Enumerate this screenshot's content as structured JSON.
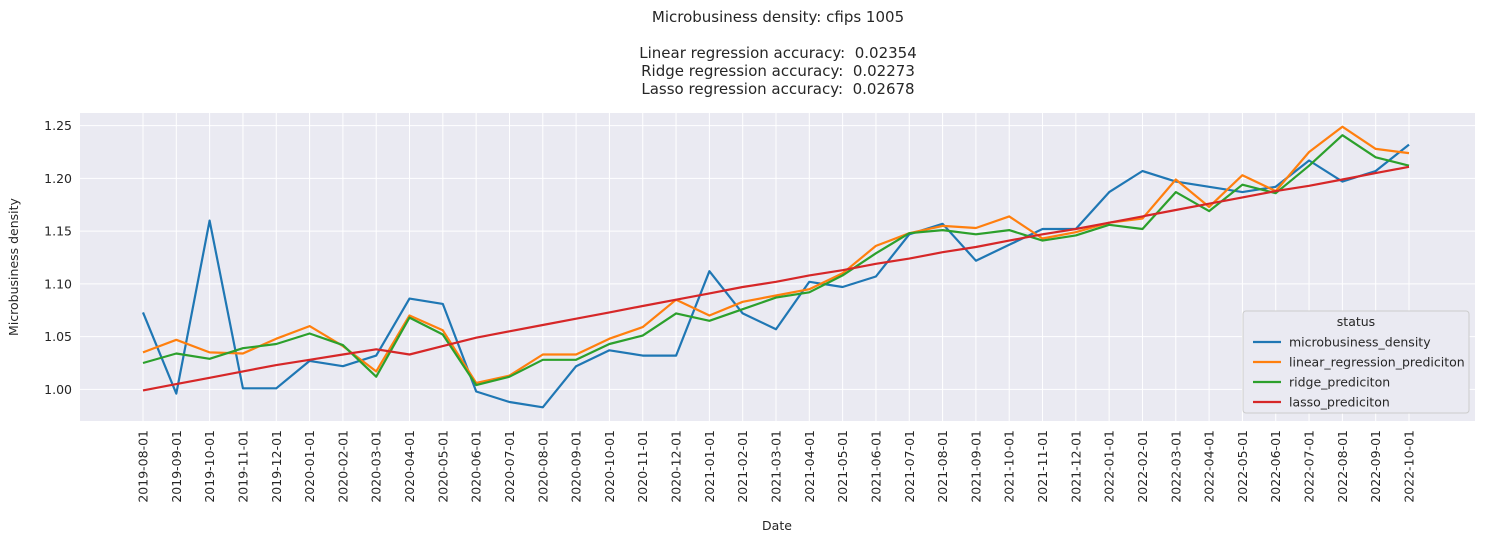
{
  "chart_data": {
    "type": "line",
    "title": "Microbusiness density: cfips 1005",
    "subtitle_lines": [
      "Linear regression accuracy:  0.02354",
      "Ridge regression accuracy:  0.02273",
      "Lasso regression accuracy:  0.02678"
    ],
    "xlabel": "Date",
    "ylabel": "Microbusiness density",
    "ylim": [
      0.97,
      1.262
    ],
    "yticks": [
      "1.00",
      "1.05",
      "1.10",
      "1.15",
      "1.20",
      "1.25"
    ],
    "ytick_values": [
      1.0,
      1.05,
      1.1,
      1.15,
      1.2,
      1.25
    ],
    "grid": true,
    "legend": {
      "title": "status",
      "placement": "lower-right"
    },
    "x": [
      "2019-08-01",
      "2019-09-01",
      "2019-10-01",
      "2019-11-01",
      "2019-12-01",
      "2020-01-01",
      "2020-02-01",
      "2020-03-01",
      "2020-04-01",
      "2020-05-01",
      "2020-06-01",
      "2020-07-01",
      "2020-08-01",
      "2020-09-01",
      "2020-10-01",
      "2020-11-01",
      "2020-12-01",
      "2021-01-01",
      "2021-02-01",
      "2021-03-01",
      "2021-04-01",
      "2021-05-01",
      "2021-06-01",
      "2021-07-01",
      "2021-08-01",
      "2021-09-01",
      "2021-10-01",
      "2021-11-01",
      "2021-12-01",
      "2022-01-01",
      "2022-02-01",
      "2022-03-01",
      "2022-04-01",
      "2022-05-01",
      "2022-06-01",
      "2022-07-01",
      "2022-08-01",
      "2022-09-01",
      "2022-10-01"
    ],
    "series": [
      {
        "name": "microbusiness_density",
        "color": "#1f77b4",
        "values": [
          1.073,
          0.996,
          1.16,
          1.001,
          1.001,
          1.027,
          1.022,
          1.032,
          1.086,
          1.081,
          0.998,
          0.988,
          0.983,
          1.022,
          1.037,
          1.032,
          1.032,
          1.112,
          1.072,
          1.057,
          1.102,
          1.097,
          1.107,
          1.147,
          1.157,
          1.122,
          1.137,
          1.152,
          1.152,
          1.187,
          1.207,
          1.197,
          1.192,
          1.187,
          1.192,
          1.217,
          1.197,
          1.207,
          1.232
        ]
      },
      {
        "name": "linear_regression_prediciton",
        "color": "#ff7f0e",
        "values": [
          1.035,
          1.047,
          1.035,
          1.034,
          1.048,
          1.06,
          1.041,
          1.017,
          1.07,
          1.056,
          1.006,
          1.013,
          1.033,
          1.033,
          1.048,
          1.059,
          1.085,
          1.07,
          1.083,
          1.089,
          1.095,
          1.11,
          1.136,
          1.148,
          1.155,
          1.153,
          1.164,
          1.143,
          1.149,
          1.158,
          1.162,
          1.199,
          1.173,
          1.203,
          1.188,
          1.225,
          1.249,
          1.228,
          1.224
        ]
      },
      {
        "name": "ridge_prediciton",
        "color": "#2ca02c",
        "values": [
          1.025,
          1.034,
          1.029,
          1.039,
          1.043,
          1.053,
          1.042,
          1.012,
          1.068,
          1.052,
          1.004,
          1.012,
          1.028,
          1.028,
          1.043,
          1.051,
          1.072,
          1.065,
          1.076,
          1.087,
          1.092,
          1.108,
          1.129,
          1.148,
          1.151,
          1.147,
          1.151,
          1.141,
          1.146,
          1.156,
          1.152,
          1.187,
          1.169,
          1.194,
          1.186,
          1.212,
          1.241,
          1.22,
          1.212
        ]
      },
      {
        "name": "lasso_prediciton",
        "color": "#d62728",
        "values": [
          0.999,
          1.005,
          1.011,
          1.017,
          1.023,
          1.028,
          1.033,
          1.038,
          1.033,
          1.041,
          1.049,
          1.055,
          1.061,
          1.067,
          1.073,
          1.079,
          1.085,
          1.091,
          1.097,
          1.102,
          1.108,
          1.113,
          1.119,
          1.124,
          1.13,
          1.135,
          1.141,
          1.147,
          1.152,
          1.158,
          1.164,
          1.17,
          1.176,
          1.182,
          1.188,
          1.193,
          1.199,
          1.205,
          1.211
        ]
      }
    ]
  }
}
